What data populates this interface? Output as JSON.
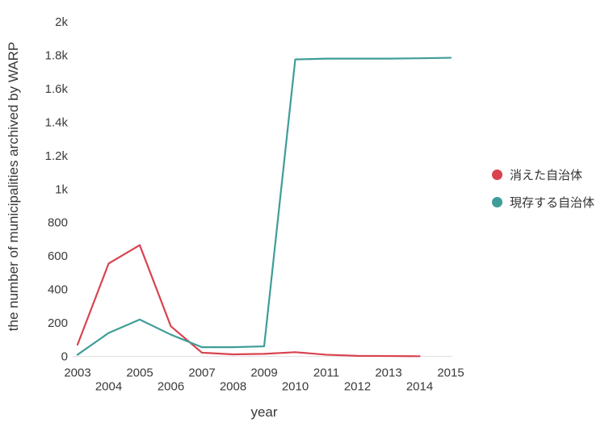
{
  "window": {
    "background": "#ffffff"
  },
  "colors": {
    "axis_text": "#3a3a3a",
    "baseline": "#e4e4e4",
    "series_red": "#d9434f",
    "series_teal": "#3f9d97"
  },
  "chart_data": {
    "type": "line",
    "title": "",
    "xlabel": "year",
    "ylabel": "the number of municipalities archived by WARP",
    "xlim": [
      2003,
      2015
    ],
    "ylim": [
      0,
      2000
    ],
    "grid": false,
    "legend_position": "right",
    "x_ticks": [
      2003,
      2004,
      2005,
      2006,
      2007,
      2008,
      2009,
      2010,
      2011,
      2012,
      2013,
      2014,
      2015
    ],
    "x_tick_stagger": true,
    "y_ticks": [
      {
        "value": 0,
        "label": "0"
      },
      {
        "value": 200,
        "label": "200"
      },
      {
        "value": 400,
        "label": "400"
      },
      {
        "value": 600,
        "label": "600"
      },
      {
        "value": 800,
        "label": "800"
      },
      {
        "value": 1000,
        "label": "1k"
      },
      {
        "value": 1200,
        "label": "1.2k"
      },
      {
        "value": 1400,
        "label": "1.4k"
      },
      {
        "value": 1600,
        "label": "1.6k"
      },
      {
        "value": 1800,
        "label": "1.8k"
      },
      {
        "value": 2000,
        "label": "2k"
      }
    ],
    "series": [
      {
        "name": "消えた自治体",
        "key": "disappeared",
        "color": "#d9434f",
        "x": [
          2003,
          2004,
          2005,
          2006,
          2007,
          2008,
          2009,
          2010,
          2011,
          2012,
          2013,
          2014
        ],
        "values": [
          70,
          555,
          665,
          180,
          22,
          12,
          15,
          25,
          10,
          3,
          2,
          1
        ]
      },
      {
        "name": "現存する自治体",
        "key": "existing",
        "color": "#3f9d97",
        "x": [
          2003,
          2004,
          2005,
          2006,
          2007,
          2008,
          2009,
          2010,
          2011,
          2012,
          2013,
          2014,
          2015
        ],
        "values": [
          10,
          140,
          220,
          130,
          55,
          55,
          60,
          1775,
          1780,
          1780,
          1780,
          1782,
          1785
        ]
      }
    ]
  }
}
